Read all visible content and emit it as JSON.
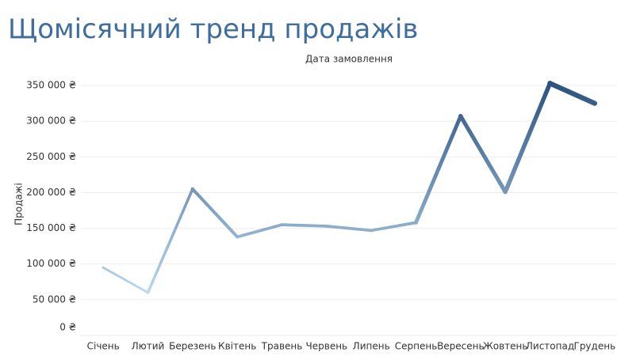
{
  "chart_data": {
    "type": "line",
    "title": "Щомісячний тренд продажів",
    "x_label": "Дата замовлення",
    "y_label": "Продажі",
    "categories": [
      "Січень",
      "Лютий",
      "Березень",
      "Квітень",
      "Травень",
      "Червень",
      "Липень",
      "Серпень",
      "Вересень",
      "Жовтень",
      "Листопад",
      "Грудень"
    ],
    "values": [
      95000,
      60000,
      205000,
      138000,
      155000,
      153000,
      147000,
      158000,
      307000,
      201000,
      353000,
      325000
    ],
    "color_range": [
      "#b9d8ee",
      "#2b5280"
    ],
    "ylim": [
      0,
      370000
    ],
    "yticks": [
      {
        "value": 0,
        "label": "0 ₴"
      },
      {
        "value": 50000,
        "label": "50 000 ₴"
      },
      {
        "value": 100000,
        "label": "100 000 ₴"
      },
      {
        "value": 150000,
        "label": "150 000 ₴"
      },
      {
        "value": 200000,
        "label": "200 000 ₴"
      },
      {
        "value": 250000,
        "label": "250 000 ₴"
      },
      {
        "value": 300000,
        "label": "300 000 ₴"
      },
      {
        "value": 350000,
        "label": "350 000 ₴"
      }
    ],
    "grid": true
  }
}
